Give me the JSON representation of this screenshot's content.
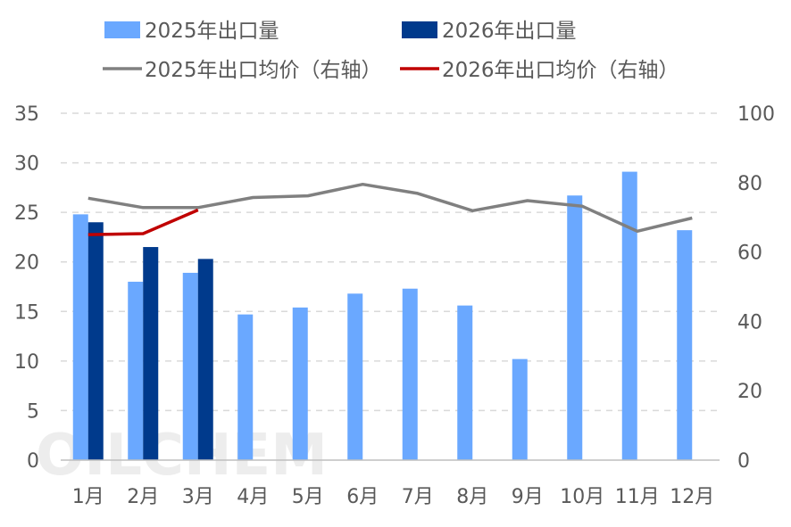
{
  "chart_data": {
    "type": "bar",
    "categories": [
      "1月",
      "2月",
      "3月",
      "4月",
      "5月",
      "6月",
      "7月",
      "8月",
      "9月",
      "10月",
      "11月",
      "12月"
    ],
    "bar_series": [
      {
        "name": "2025年出口量",
        "color": "#6aa8ff",
        "values": [
          24.8,
          18.0,
          18.9,
          14.7,
          15.4,
          16.8,
          17.3,
          15.6,
          10.2,
          26.7,
          29.1,
          23.2
        ]
      },
      {
        "name": "2026年出口量",
        "color": "#003a8c",
        "values": [
          24.0,
          21.5,
          20.3,
          null,
          null,
          null,
          null,
          null,
          null,
          null,
          null,
          null
        ]
      }
    ],
    "line_series": [
      {
        "name": "2025年出口均价（右轴）",
        "color": "#808080",
        "values": [
          75.5,
          72.8,
          72.8,
          75.7,
          76.2,
          79.5,
          76.9,
          71.9,
          74.8,
          73.2,
          66.0,
          69.8
        ]
      },
      {
        "name": "2026年出口均价（右轴）",
        "color": "#c00000",
        "values": [
          65.0,
          65.3,
          72.1,
          null,
          null,
          null,
          null,
          null,
          null,
          null,
          null,
          null
        ]
      }
    ],
    "y_left": {
      "lim": [
        0,
        35
      ],
      "ticks": [
        "0",
        "5",
        "10",
        "15",
        "20",
        "25",
        "30",
        "35"
      ]
    },
    "y_right": {
      "lim": [
        0,
        100
      ],
      "ticks": [
        "0",
        "20",
        "40",
        "60",
        "80",
        "100"
      ]
    },
    "grid": true,
    "legend_position": "top"
  },
  "watermark": "OILCHEM"
}
